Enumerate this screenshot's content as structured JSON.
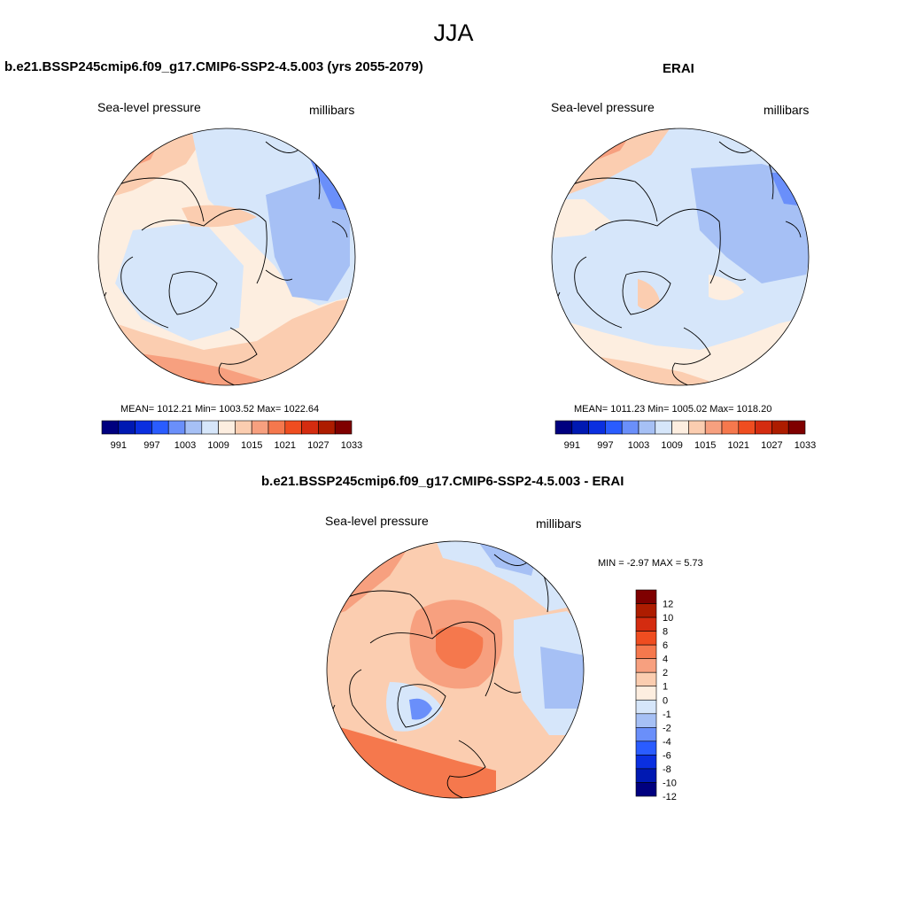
{
  "main_title": "JJA",
  "panels": [
    {
      "title": "b.e21.BSSP245cmip6.f09_g17.CMIP6-SSP2-4.5.003 (yrs 2055-2079)",
      "variable": "Sea-level pressure",
      "units": "millibars",
      "stats": "MEAN= 1012.21  Min= 1003.52  Max= 1022.64"
    },
    {
      "title": "ERAI",
      "variable": "Sea-level pressure",
      "units": "millibars",
      "stats": "MEAN= 1011.23  Min= 1005.02  Max= 1018.20"
    },
    {
      "title": "b.e21.BSSP245cmip6.f09_g17.CMIP6-SSP2-4.5.003 - ERAI",
      "variable": "Sea-level pressure",
      "units": "millibars",
      "stats": "MIN =  -2.97 MAX =   5.73"
    }
  ],
  "colorbars": {
    "abs_colors": [
      "#00007f",
      "#0019b2",
      "#0a2fe0",
      "#2a5cff",
      "#6a8ffa",
      "#a6c0f5",
      "#d6e6fa",
      "#fdeee0",
      "#fbcdb0",
      "#f7a07f",
      "#f5784d",
      "#ef4d20",
      "#d42c10",
      "#ad1c00",
      "#7f0000"
    ],
    "abs_labels": [
      "991",
      "997",
      "1003",
      "1009",
      "1015",
      "1021",
      "1027",
      "1033"
    ],
    "diff_colors": [
      "#00007f",
      "#0019b2",
      "#0a2fe0",
      "#2a5cff",
      "#6a8ffa",
      "#a6c0f5",
      "#d6e6fa",
      "#fdeee0",
      "#fbcdb0",
      "#f7a07f",
      "#f5784d",
      "#ef4d20",
      "#d42c10",
      "#ad1c00",
      "#7f0000"
    ],
    "diff_labels": [
      "12",
      "10",
      "8",
      "6",
      "4",
      "2",
      "1",
      "0",
      "-1",
      "-2",
      "-4",
      "-6",
      "-8",
      "-10",
      "-12"
    ]
  }
}
